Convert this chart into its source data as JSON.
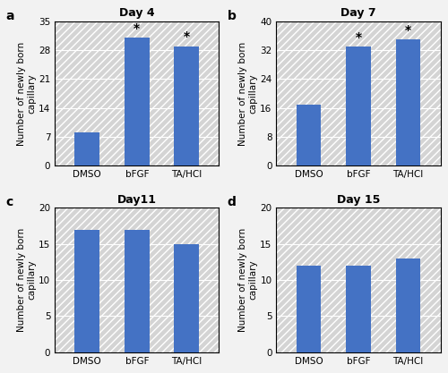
{
  "panels": [
    {
      "label": "a",
      "title": "Day 4",
      "categories": [
        "DMSO",
        "bFGF",
        "TA/HCl"
      ],
      "values": [
        8,
        31,
        29
      ],
      "ylim": [
        0,
        35
      ],
      "yticks": [
        0,
        7,
        14,
        21,
        28,
        35
      ],
      "asterisks": [
        false,
        true,
        true
      ]
    },
    {
      "label": "b",
      "title": "Day 7",
      "categories": [
        "DMSO",
        "bFGF",
        "TA/HCl"
      ],
      "values": [
        17,
        33,
        35
      ],
      "ylim": [
        0,
        40
      ],
      "yticks": [
        0,
        8,
        16,
        24,
        32,
        40
      ],
      "asterisks": [
        false,
        true,
        true
      ]
    },
    {
      "label": "c",
      "title": "Day11",
      "categories": [
        "DMSO",
        "bFGF",
        "TA/HCl"
      ],
      "values": [
        17,
        17,
        15
      ],
      "ylim": [
        0,
        20
      ],
      "yticks": [
        0,
        5,
        10,
        15,
        20
      ],
      "asterisks": [
        false,
        false,
        false
      ]
    },
    {
      "label": "d",
      "title": "Day 15",
      "categories": [
        "DMSO",
        "bFGF",
        "TA/HCl"
      ],
      "values": [
        12,
        12,
        13
      ],
      "ylim": [
        0,
        20
      ],
      "yticks": [
        0,
        5,
        10,
        15,
        20
      ],
      "asterisks": [
        false,
        false,
        false
      ]
    }
  ],
  "bar_color": "#4472C4",
  "bar_width": 0.5,
  "ylabel": "Number of newly born\ncapillary",
  "background_color": "#d4d4d4",
  "hatch_pattern": "////",
  "hatch_color": "#ffffff",
  "grid_color": "#ffffff",
  "fig_background": "#f2f2f2",
  "title_fontsize": 9,
  "tick_fontsize": 7.5,
  "ylabel_fontsize": 7.5,
  "panel_label_fontsize": 10
}
